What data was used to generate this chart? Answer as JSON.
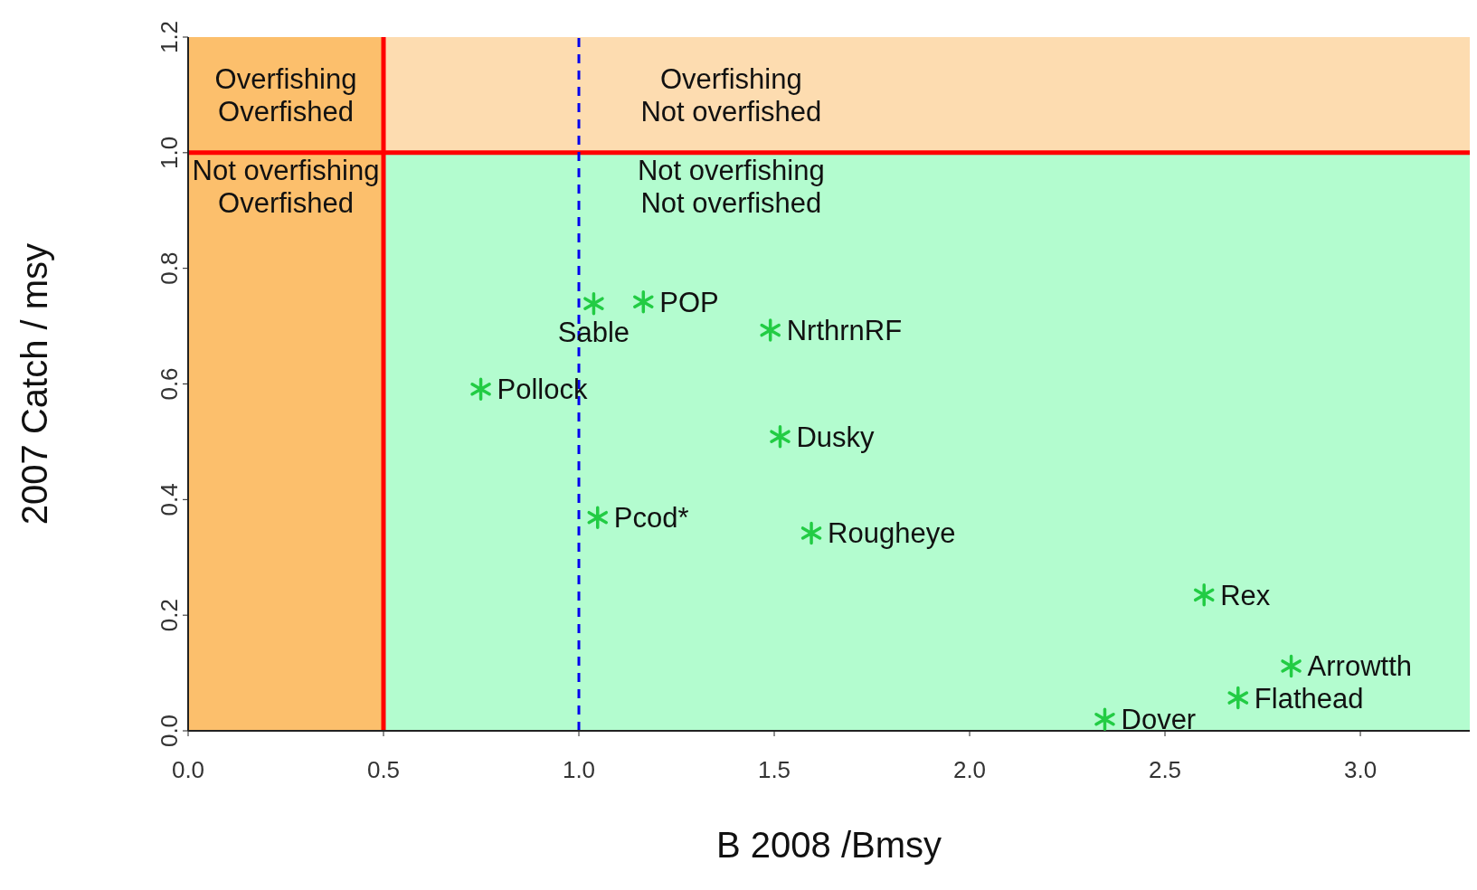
{
  "chart_data": {
    "type": "scatter",
    "xlabel": "B 2008 /Bmsy",
    "ylabel": "2007 Catch / msy",
    "x": [
      1.038,
      1.165,
      1.49,
      0.749,
      1.515,
      1.048,
      1.595,
      2.6,
      2.823,
      2.687,
      2.346
    ],
    "series": [
      {
        "color": "#22cc44",
        "values": [
          0.739,
          0.742,
          0.693,
          0.591,
          0.509,
          0.369,
          0.342,
          0.235,
          0.112,
          0.057,
          0.02
        ]
      }
    ],
    "marker": "cross",
    "grid": false,
    "xlim": [
      0,
      3.28
    ],
    "xticks": [
      {
        "value": 0,
        "label": "0.0"
      },
      {
        "value": 0.5,
        "label": "0.5"
      },
      {
        "value": 1,
        "label": "1.0"
      },
      {
        "value": 1.5,
        "label": "1.5"
      },
      {
        "value": 2,
        "label": "2.0"
      },
      {
        "value": 2.5,
        "label": "2.5"
      },
      {
        "value": 3,
        "label": "3.0"
      }
    ],
    "ylim": [
      0,
      1.2
    ],
    "yticks": [
      {
        "value": 0,
        "label": "0.0"
      },
      {
        "value": 0.2,
        "label": "0.2"
      },
      {
        "value": 0.4,
        "label": "0.4"
      },
      {
        "value": 0.6,
        "label": "0.6"
      },
      {
        "value": 0.8,
        "label": "0.8"
      },
      {
        "value": 1,
        "label": "1.0"
      },
      {
        "value": 1.2,
        "label": "1.2"
      }
    ],
    "bands": [
      {
        "axis": "x",
        "from": 0.5,
        "to": 3.28,
        "color": "#b3fccf"
      },
      {
        "axis": "y",
        "from": 1,
        "to": 1.2,
        "color": "#fddcb0"
      },
      {
        "axis": "x",
        "from": 0,
        "to": 0.5,
        "color": "#fcbf6c"
      }
    ],
    "ref_lines": [
      {
        "axis": "x",
        "value": 0.5,
        "color": "#ff0000",
        "line_style": "solid"
      },
      {
        "axis": "y",
        "value": 1,
        "color": "#ff0000",
        "line_style": "solid"
      },
      {
        "axis": "x",
        "value": 1,
        "color": "#0000ee",
        "line_style": "dashed"
      }
    ],
    "annotations": [
      "Overfishing\nOverfished",
      "Overfishing\nNot overfished",
      "Not overfishing\nOverfished",
      "Not overfishing\nNot overfished",
      {
        "text": "Sable",
        "x": 1.038,
        "y": 0.739
      },
      {
        "text": "POP",
        "x": 1.165,
        "y": 0.742
      },
      {
        "text": "NrthrnRF",
        "x": 1.49,
        "y": 0.693
      },
      {
        "text": "Pollock",
        "x": 0.749,
        "y": 0.591
      },
      {
        "text": "Dusky",
        "x": 1.515,
        "y": 0.509
      },
      {
        "text": "Pcod*",
        "x": 1.048,
        "y": 0.369
      },
      {
        "text": "Rougheye",
        "x": 1.595,
        "y": 0.342
      },
      {
        "text": "Rex",
        "x": 2.6,
        "y": 0.235
      },
      {
        "text": "Arrowtth",
        "x": 2.823,
        "y": 0.112
      },
      {
        "text": "Flathead",
        "x": 2.687,
        "y": 0.057
      },
      {
        "text": "Dover",
        "x": 2.346,
        "y": 0.02
      }
    ]
  }
}
